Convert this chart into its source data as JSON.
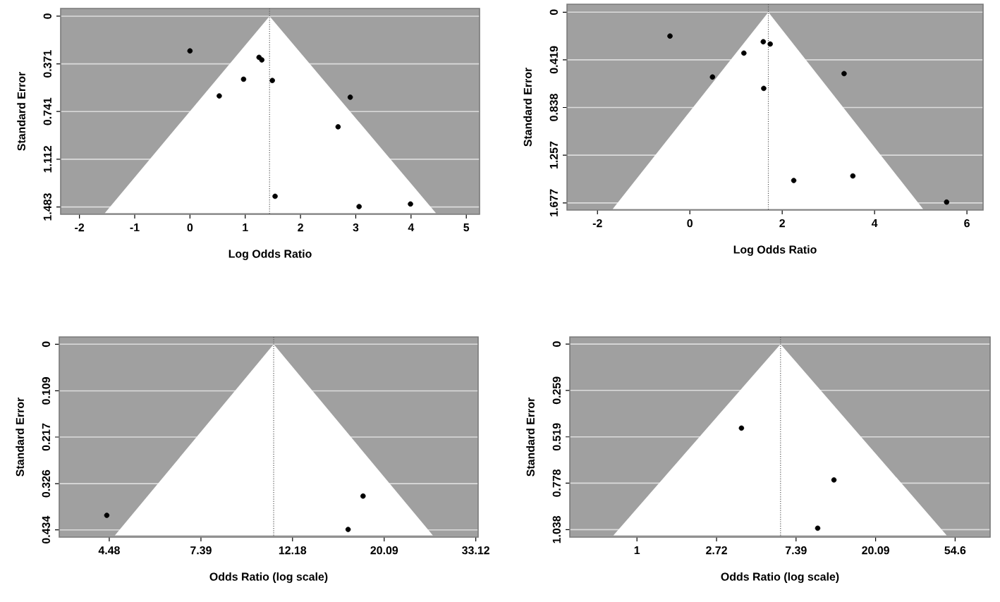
{
  "chart_data": [
    {
      "type": "scatter",
      "xlabel": "Log Odds Ratio",
      "ylabel": "Standard Error",
      "xlim": [
        -2.34,
        5.24
      ],
      "ylim": [
        1.54,
        -0.06
      ],
      "xticks": [
        -2,
        -1,
        0,
        1,
        2,
        3,
        4,
        5
      ],
      "yticks": [
        0,
        0.371,
        0.741,
        1.112,
        1.483
      ],
      "grid": "y",
      "ref_lines": [
        {
          "axis": "x",
          "value": 1.44,
          "color": "#555555",
          "line_style": "dotted"
        }
      ],
      "series": [
        {
          "type": "area",
          "color": "#ffffff",
          "x": [
            -1.54,
            1.44,
            4.45
          ],
          "values": [
            1.53,
            0,
            1.53
          ]
        },
        {
          "color": "#000000",
          "marker": "circle",
          "x": [
            0.0,
            0.53,
            0.97,
            1.25,
            1.3,
            1.49,
            2.9,
            2.68,
            1.54,
            3.06,
            3.99
          ],
          "values": [
            0.27,
            0.62,
            0.49,
            0.32,
            0.34,
            0.5,
            0.63,
            0.86,
            1.4,
            1.48,
            1.46
          ]
        }
      ]
    },
    {
      "type": "scatter",
      "xlabel": "Log Odds Ratio",
      "ylabel": "Standard Error",
      "xlim": [
        -2.66,
        6.35
      ],
      "ylim": [
        1.74,
        -0.07
      ],
      "xticks": [
        -2,
        0,
        2,
        4,
        6
      ],
      "yticks": [
        0,
        0.419,
        0.838,
        1.257,
        1.677
      ],
      "grid": "y",
      "ref_lines": [
        {
          "axis": "x",
          "value": 1.7,
          "color": "#555555",
          "line_style": "dotted"
        }
      ],
      "series": [
        {
          "type": "area",
          "color": "#ffffff",
          "x": [
            -1.67,
            1.7,
            5.05
          ],
          "values": [
            1.73,
            0,
            1.73
          ]
        },
        {
          "color": "#000000",
          "marker": "circle",
          "x": [
            -0.43,
            0.49,
            1.17,
            1.59,
            1.74,
            1.6,
            3.34,
            2.25,
            3.53,
            5.56
          ],
          "values": [
            0.21,
            0.57,
            0.36,
            0.26,
            0.28,
            0.67,
            0.54,
            1.48,
            1.44,
            1.67
          ]
        }
      ]
    },
    {
      "type": "scatter",
      "xlabel": "Odds Ratio (log scale)",
      "ylabel": "Standard Error",
      "log": "x",
      "xlim": [
        3.41,
        33.55
      ],
      "ylim": [
        0.451,
        -0.017
      ],
      "xticks": [
        4.48,
        7.39,
        12.18,
        20.09,
        33.12
      ],
      "yticks": [
        0,
        0.109,
        0.217,
        0.326,
        0.434
      ],
      "grid": "y",
      "ref_lines": [
        {
          "axis": "x",
          "value": 10.99,
          "color": "#555555",
          "line_style": "dotted"
        }
      ],
      "series": [
        {
          "type": "area",
          "color": "#ffffff",
          "x": [
            4.62,
            10.99,
            26.2
          ],
          "values": [
            0.447,
            0,
            0.447
          ]
        },
        {
          "color": "#000000",
          "marker": "circle",
          "x": [
            4.42,
            17.9,
            16.5
          ],
          "values": [
            0.4,
            0.355,
            0.433
          ]
        }
      ]
    },
    {
      "type": "scatter",
      "xlabel": "Odds Ratio (log scale)",
      "ylabel": "Standard Error",
      "log": "x",
      "xlim": [
        0.43,
        84.8
      ],
      "ylim": [
        1.08,
        -0.04
      ],
      "xticks": [
        1,
        2.72,
        7.39,
        20.09,
        54.6
      ],
      "yticks": [
        0,
        0.259,
        0.519,
        0.778,
        1.038
      ],
      "grid": "y",
      "ref_lines": [
        {
          "axis": "x",
          "value": 6.08,
          "color": "#555555",
          "line_style": "dotted"
        }
      ],
      "series": [
        {
          "type": "area",
          "color": "#ffffff",
          "x": [
            0.744,
            6.08,
            49.1
          ],
          "values": [
            1.07,
            0,
            1.07
          ]
        },
        {
          "color": "#000000",
          "marker": "circle",
          "x": [
            3.72,
            11.9,
            9.7
          ],
          "values": [
            0.47,
            0.76,
            1.03
          ]
        }
      ]
    }
  ]
}
